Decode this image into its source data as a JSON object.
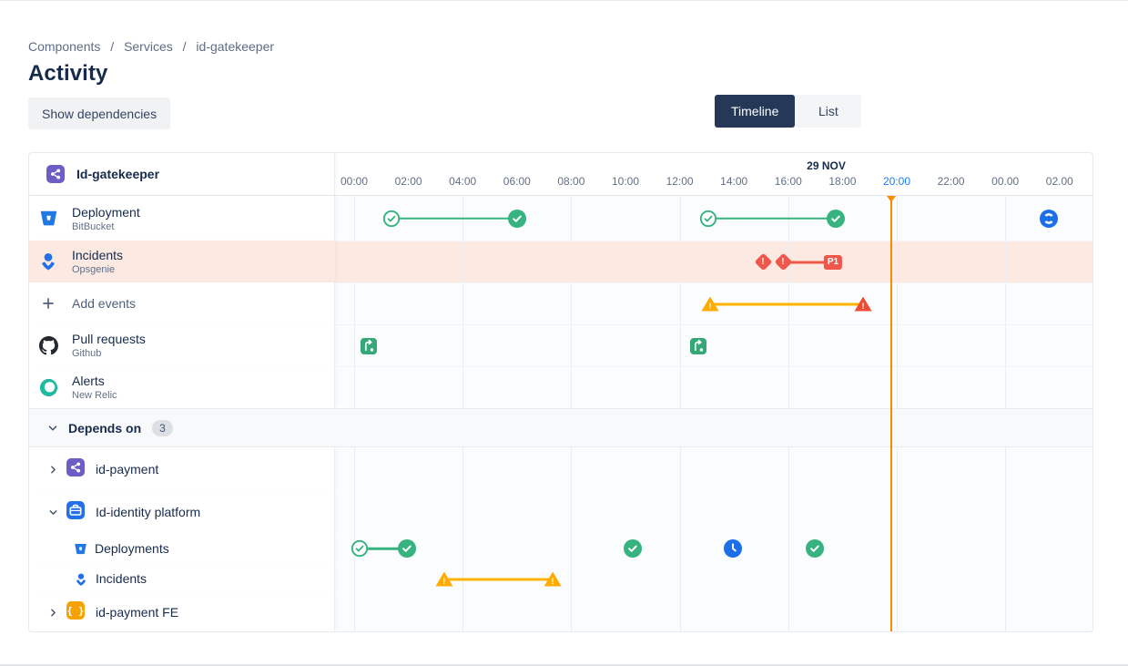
{
  "breadcrumb": {
    "items": [
      "Components",
      "Services",
      "id-gatekeeper"
    ],
    "separator": "/"
  },
  "page": {
    "title": "Activity"
  },
  "toolbar": {
    "show_dependencies_label": "Show dependencies",
    "view_toggle": [
      {
        "label": "Timeline",
        "active": true
      },
      {
        "label": "List",
        "active": false
      }
    ]
  },
  "colors": {
    "accent_blue": "#1D7AFC",
    "success_green": "#36B37E",
    "danger_red": "#F1564A",
    "warning_yellow": "#FFAB00",
    "warning_red": "#EE4B35",
    "now_orange": "#FB8B02",
    "highlight_row": "#FCE9E2",
    "selected_toggle": "#253858",
    "purple_component": "#6E5DC6",
    "blue_component": "#2470E8",
    "orange_component": "#F5A204"
  },
  "timeline": {
    "component": {
      "name": "Id-gatekeeper",
      "icon": "component-icon"
    },
    "now_t": 19.77,
    "axis": {
      "date": {
        "label": "29 NOV",
        "t": 17.4
      },
      "grid_ts": [
        0,
        4,
        8,
        12,
        16,
        20,
        24
      ],
      "ticks": [
        {
          "t": 0,
          "label": "00:00"
        },
        {
          "t": 2,
          "label": "02:00"
        },
        {
          "t": 4,
          "label": "04:00"
        },
        {
          "t": 6,
          "label": "06:00"
        },
        {
          "t": 8,
          "label": "08:00"
        },
        {
          "t": 10,
          "label": "10:00"
        },
        {
          "t": 12,
          "label": "12:00"
        },
        {
          "t": 14,
          "label": "14:00"
        },
        {
          "t": 16,
          "label": "16:00"
        },
        {
          "t": 18,
          "label": "18:00"
        },
        {
          "t": 20,
          "label": "20:00",
          "active": true
        },
        {
          "t": 22,
          "label": "22:00"
        },
        {
          "t": 24,
          "label": "00.00"
        },
        {
          "t": 26,
          "label": "02.00"
        }
      ]
    },
    "rows": [
      {
        "type": "event",
        "name": "deployment",
        "label": "Deployment",
        "sublabel": "BitBucket",
        "icon": "bitbucket-icon",
        "events": [
          {
            "kind": "span",
            "t1": 1.38,
            "t2": 6.0,
            "line": "green",
            "start": "check-outline",
            "end": "check-filled"
          },
          {
            "kind": "span",
            "t1": 13.05,
            "t2": 17.75,
            "line": "green",
            "start": "check-outline",
            "end": "check-filled"
          },
          {
            "kind": "marker",
            "t": 25.6,
            "icon": "progress-icon"
          }
        ]
      },
      {
        "type": "event",
        "name": "incidents",
        "label": "Incidents",
        "sublabel": "Opsgenie",
        "icon": "opsgenie-icon",
        "highlighted": true,
        "events": [
          {
            "kind": "marker",
            "t": 15.07,
            "icon": "incident-diamond"
          },
          {
            "kind": "span",
            "t1": 15.81,
            "t2": 17.65,
            "line": "red",
            "start": "incident-diamond",
            "end": "p1-badge",
            "end_label": "P1"
          }
        ]
      },
      {
        "type": "action",
        "name": "add-events",
        "label": "Add events",
        "icon": "plus-icon",
        "events": [
          {
            "kind": "span",
            "t1": 13.12,
            "t2": 18.76,
            "line": "amber",
            "start": "triangle-yellow",
            "end": "triangle-red"
          }
        ]
      },
      {
        "type": "event",
        "name": "pull-requests",
        "label": "Pull requests",
        "sublabel": "Github",
        "icon": "github-icon",
        "events": [
          {
            "kind": "marker",
            "t": 0.54,
            "icon": "pull-request-icon"
          },
          {
            "kind": "marker",
            "t": 12.68,
            "icon": "pull-request-icon"
          }
        ]
      },
      {
        "type": "event",
        "name": "alerts",
        "label": "Alerts",
        "sublabel": "New Relic",
        "icon": "newrelic-icon",
        "events": []
      },
      {
        "type": "group",
        "name": "depends-on",
        "label": "Depends on",
        "count": "3",
        "expanded": true
      },
      {
        "type": "dependency",
        "name": "id-payment",
        "label": "id-payment",
        "icon": "component-icon",
        "expanded": false,
        "events": []
      },
      {
        "type": "dependency",
        "name": "id-identity-platform",
        "label": "Id-identity platform",
        "icon": "platform-icon",
        "expanded": true,
        "events": []
      },
      {
        "type": "subevent",
        "name": "identity-deployments",
        "label": "Deployments",
        "icon": "bitbucket-icon",
        "events": [
          {
            "kind": "span",
            "t1": 0.2,
            "t2": 1.95,
            "line": "green",
            "start": "check-outline",
            "end": "check-filled"
          },
          {
            "kind": "marker",
            "t": 10.27,
            "icon": "check-filled"
          },
          {
            "kind": "marker",
            "t": 13.96,
            "icon": "clock-icon"
          },
          {
            "kind": "marker",
            "t": 16.98,
            "icon": "check-filled"
          }
        ]
      },
      {
        "type": "subevent",
        "name": "identity-incidents",
        "label": "Incidents",
        "icon": "opsgenie-icon",
        "events": [
          {
            "kind": "span",
            "t1": 3.32,
            "t2": 7.32,
            "line": "amber",
            "start": "triangle-yellow",
            "end": "triangle-yellow"
          }
        ]
      },
      {
        "type": "dependency",
        "name": "id-payment-fe",
        "label": "id-payment FE",
        "icon": "braces-icon",
        "expanded": false,
        "events": []
      }
    ]
  }
}
